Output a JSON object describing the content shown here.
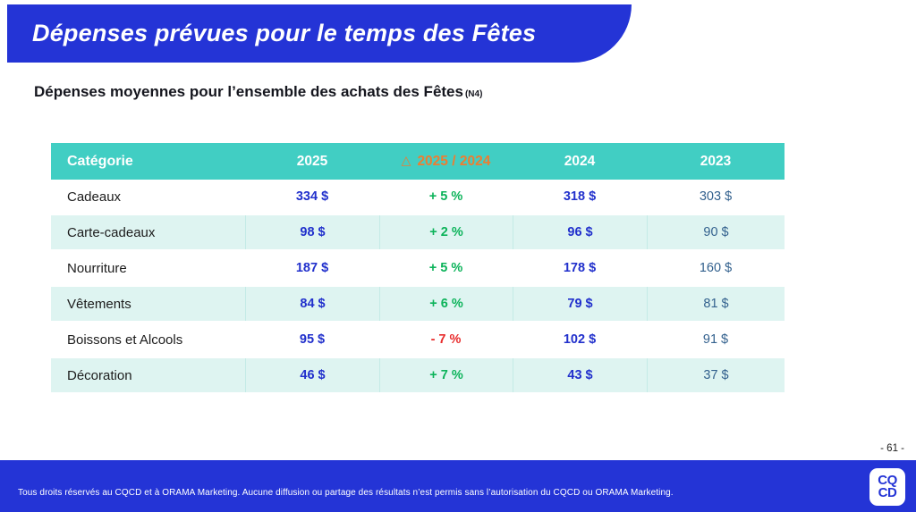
{
  "banner": {
    "title": "Dépenses prévues pour le temps des Fêtes"
  },
  "subtitle": {
    "text": "Dépenses moyennes pour l’ensemble des achats des Fêtes",
    "note": "(N4)"
  },
  "table": {
    "columns": [
      {
        "key": "category",
        "label": "Catégorie"
      },
      {
        "key": "y2025",
        "label": "2025"
      },
      {
        "key": "delta",
        "label": "2025 / 2024",
        "icon": "triangle-up-icon",
        "glyph": "△"
      },
      {
        "key": "y2024",
        "label": "2024"
      },
      {
        "key": "y2023",
        "label": "2023"
      }
    ],
    "rows": [
      {
        "category": "Cadeaux",
        "y2025": "334 $",
        "delta": "+ 5 %",
        "delta_dir": "up",
        "y2024": "318 $",
        "y2023": "303 $"
      },
      {
        "category": "Carte-cadeaux",
        "y2025": "98 $",
        "delta": "+ 2 %",
        "delta_dir": "up",
        "y2024": "96 $",
        "y2023": "90 $"
      },
      {
        "category": "Nourriture",
        "y2025": "187 $",
        "delta": "+ 5 %",
        "delta_dir": "up",
        "y2024": "178 $",
        "y2023": "160 $"
      },
      {
        "category": "Vêtements",
        "y2025": "84 $",
        "delta": "+ 6 %",
        "delta_dir": "up",
        "y2024": "79 $",
        "y2023": "81 $"
      },
      {
        "category": "Boissons et Alcools",
        "y2025": "95 $",
        "delta": "- 7 %",
        "delta_dir": "down",
        "y2024": "102 $",
        "y2023": "91 $"
      },
      {
        "category": "Décoration",
        "y2025": "46 $",
        "delta": "+ 7 %",
        "delta_dir": "up",
        "y2024": "43 $",
        "y2023": "37 $"
      }
    ]
  },
  "page_number": "- 61 -",
  "footer": {
    "text": "Tous droits réservés au CQCD et à ORAMA Marketing. Aucune diffusion ou partage des résultats n’est permis sans l’autorisation du CQCD ou ORAMA Marketing.",
    "logo_line1": "CQ",
    "logo_line2": "CD"
  },
  "colors": {
    "brand_blue": "#2434d6",
    "header_teal": "#41cec3",
    "row_tint": "#def4f1",
    "value_blue": "#2130cc",
    "delta_up_green": "#0cb35a",
    "delta_down_red": "#e82c2c",
    "delta_header_orange": "#ed7d31",
    "year2023_steel_blue": "#33618e"
  }
}
